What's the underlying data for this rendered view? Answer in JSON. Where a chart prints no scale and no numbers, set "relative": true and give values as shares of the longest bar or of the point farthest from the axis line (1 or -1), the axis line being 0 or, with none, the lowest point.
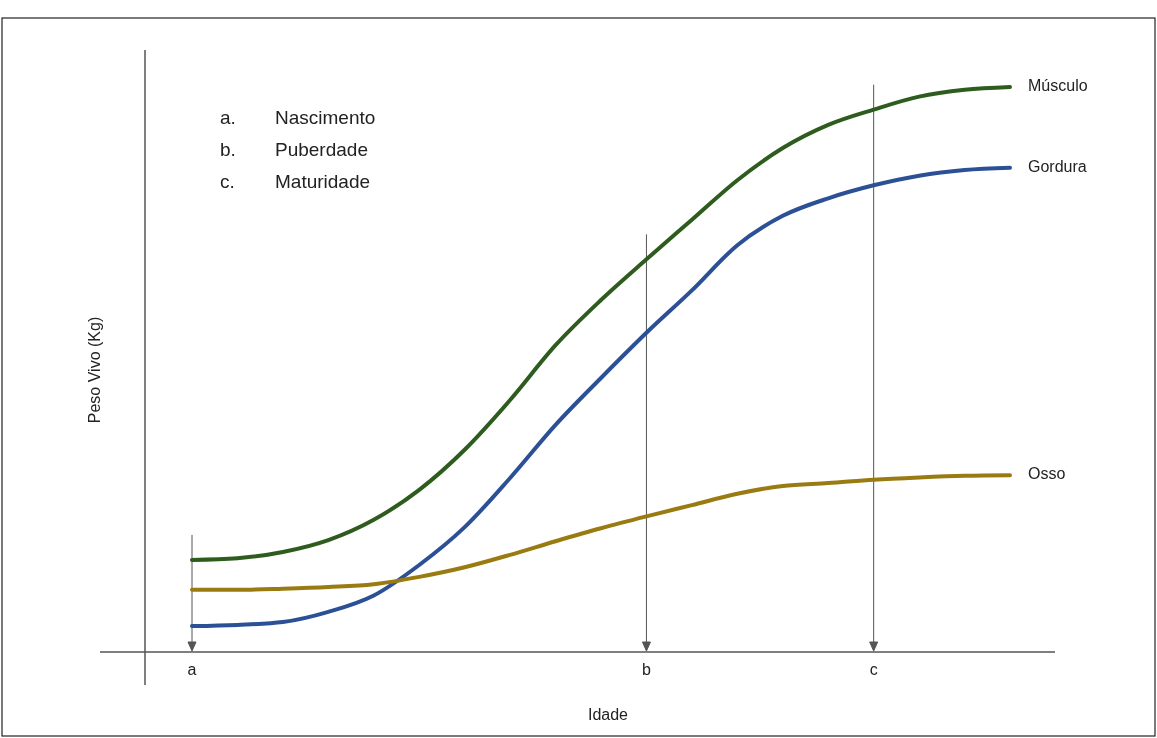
{
  "chart_data": {
    "type": "line",
    "relative": true,
    "xlabel": "Idade",
    "ylabel": "Peso Vivo (Kg)",
    "categories": [
      "a",
      null,
      null,
      null,
      null,
      null,
      null,
      null,
      null,
      null,
      "b",
      null,
      null,
      null,
      null,
      "c",
      null,
      null,
      null
    ],
    "series": [
      {
        "name": "Músculo",
        "color": "#2e5c1e",
        "values": [
          0.163,
          0.166,
          0.177,
          0.198,
          0.234,
          0.287,
          0.358,
          0.446,
          0.543,
          0.623,
          0.695,
          0.765,
          0.835,
          0.892,
          0.933,
          0.96,
          0.983,
          0.995,
          1
        ]
      },
      {
        "name": "Gordura",
        "color": "#2b5096",
        "values": [
          0.046,
          0.048,
          0.053,
          0.071,
          0.1,
          0.154,
          0.221,
          0.308,
          0.402,
          0.485,
          0.565,
          0.64,
          0.72,
          0.772,
          0.803,
          0.826,
          0.843,
          0.853,
          0.857
        ]
      },
      {
        "name": "Osso",
        "color": "#9a7b12",
        "values": [
          0.11,
          0.11,
          0.112,
          0.115,
          0.12,
          0.133,
          0.15,
          0.172,
          0.196,
          0.219,
          0.24,
          0.26,
          0.28,
          0.294,
          0.299,
          0.305,
          0.309,
          0.312,
          0.313
        ]
      }
    ],
    "ref_lines": [
      {
        "axis": "x",
        "value": "a",
        "color": "#555555"
      },
      {
        "axis": "x",
        "value": "b",
        "color": "#555555"
      },
      {
        "axis": "x",
        "value": "c",
        "color": "#555555"
      }
    ],
    "annotations": [
      "a. Nascimento",
      "b. Puberdade",
      "c. Maturidade"
    ],
    "line_style": "solid"
  }
}
